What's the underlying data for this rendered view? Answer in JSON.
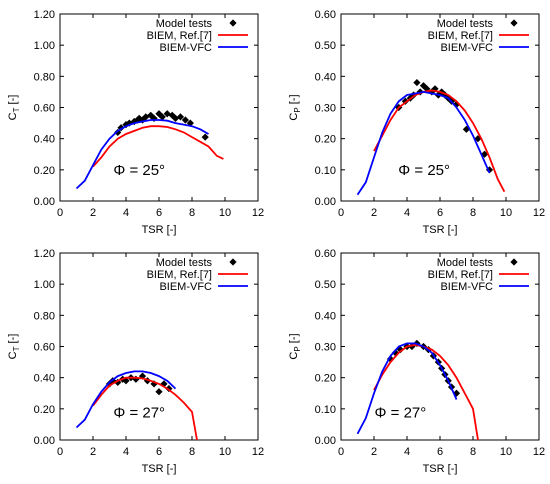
{
  "chart_data": [
    {
      "type": "scatter+line",
      "xlabel": "TSR [-]",
      "ylabel_main": "C",
      "ylabel_sub": "T",
      "ylabel_tail": " [-]",
      "xlim": [
        0,
        12
      ],
      "ylim": [
        0,
        1.2
      ],
      "xticks": [
        "0",
        "2",
        "4",
        "6",
        "8",
        "10",
        "12"
      ],
      "yticks": [
        "0.00",
        "0.20",
        "0.40",
        "0.60",
        "0.80",
        "1.00",
        "1.20"
      ],
      "annotation": "Φ = 25°",
      "legend_position": "top-right",
      "series": [
        {
          "name": "Model tests",
          "kind": "markers",
          "color": "#000000",
          "x": [
            3.5,
            3.7,
            4.0,
            4.2,
            4.5,
            4.7,
            4.8,
            5.0,
            5.2,
            5.5,
            5.7,
            6.0,
            6.2,
            6.5,
            6.8,
            7.0,
            7.3,
            7.6,
            7.9,
            8.8
          ],
          "y": [
            0.44,
            0.47,
            0.49,
            0.5,
            0.51,
            0.52,
            0.53,
            0.52,
            0.54,
            0.55,
            0.53,
            0.56,
            0.54,
            0.56,
            0.55,
            0.53,
            0.54,
            0.52,
            0.5,
            0.41
          ]
        },
        {
          "name": "BIEM, Ref.[7]",
          "kind": "line",
          "color": "#ff0000",
          "x": [
            2.0,
            2.5,
            3.0,
            3.5,
            4.0,
            4.5,
            5.0,
            5.5,
            6.0,
            6.5,
            7.0,
            7.5,
            8.0,
            8.5,
            9.0,
            9.5,
            9.9
          ],
          "y": [
            0.22,
            0.28,
            0.35,
            0.4,
            0.43,
            0.45,
            0.47,
            0.48,
            0.48,
            0.475,
            0.46,
            0.44,
            0.41,
            0.38,
            0.35,
            0.29,
            0.27
          ]
        },
        {
          "name": "BIEM-VFC",
          "kind": "line",
          "color": "#0000ff",
          "x": [
            1.0,
            1.5,
            2.0,
            2.5,
            3.0,
            3.5,
            4.0,
            4.5,
            5.0,
            5.5,
            6.0,
            6.5,
            7.0,
            7.5,
            8.0,
            8.5,
            9.0
          ],
          "y": [
            0.08,
            0.13,
            0.23,
            0.33,
            0.4,
            0.45,
            0.48,
            0.5,
            0.51,
            0.52,
            0.52,
            0.515,
            0.5,
            0.49,
            0.48,
            0.46,
            0.43
          ]
        }
      ]
    },
    {
      "type": "scatter+line",
      "xlabel": "TSR [-]",
      "ylabel_main": "C",
      "ylabel_sub": "P",
      "ylabel_tail": " [-]",
      "xlim": [
        0,
        12
      ],
      "ylim": [
        0,
        0.6
      ],
      "xticks": [
        "0",
        "2",
        "4",
        "6",
        "8",
        "10",
        "12"
      ],
      "yticks": [
        "0.00",
        "0.10",
        "0.20",
        "0.30",
        "0.40",
        "0.50",
        "0.60"
      ],
      "annotation": "Φ = 25°",
      "legend_position": "top-right",
      "series": [
        {
          "name": "Model tests",
          "kind": "markers",
          "color": "#000000",
          "x": [
            3.5,
            3.9,
            4.2,
            4.4,
            4.6,
            4.8,
            5.0,
            5.2,
            5.5,
            5.7,
            5.9,
            6.1,
            6.3,
            6.5,
            6.7,
            7.0,
            7.6,
            8.3,
            8.7,
            9.0
          ],
          "y": [
            0.3,
            0.32,
            0.33,
            0.34,
            0.38,
            0.35,
            0.37,
            0.36,
            0.35,
            0.36,
            0.34,
            0.35,
            0.34,
            0.33,
            0.32,
            0.31,
            0.23,
            0.2,
            0.15,
            0.1
          ]
        },
        {
          "name": "BIEM, Ref.[7]",
          "kind": "line",
          "color": "#ff0000",
          "x": [
            2.0,
            2.5,
            3.0,
            3.5,
            4.0,
            4.5,
            5.0,
            5.5,
            6.0,
            6.5,
            7.0,
            7.5,
            8.0,
            8.5,
            9.0,
            9.5,
            9.9
          ],
          "y": [
            0.16,
            0.21,
            0.26,
            0.3,
            0.32,
            0.34,
            0.35,
            0.355,
            0.35,
            0.34,
            0.32,
            0.29,
            0.25,
            0.2,
            0.14,
            0.07,
            0.03
          ]
        },
        {
          "name": "BIEM-VFC",
          "kind": "line",
          "color": "#0000ff",
          "x": [
            1.0,
            1.5,
            2.0,
            2.5,
            3.0,
            3.5,
            4.0,
            4.5,
            5.0,
            5.5,
            6.0,
            6.5,
            7.0,
            7.5,
            8.0,
            8.5,
            9.0
          ],
          "y": [
            0.02,
            0.06,
            0.14,
            0.22,
            0.28,
            0.32,
            0.34,
            0.345,
            0.35,
            0.345,
            0.34,
            0.33,
            0.3,
            0.26,
            0.21,
            0.15,
            0.09
          ]
        }
      ]
    },
    {
      "type": "scatter+line",
      "xlabel": "TSR [-]",
      "ylabel_main": "C",
      "ylabel_sub": "T",
      "ylabel_tail": " [-]",
      "xlim": [
        0,
        12
      ],
      "ylim": [
        0,
        1.2
      ],
      "xticks": [
        "0",
        "2",
        "4",
        "6",
        "8",
        "10",
        "12"
      ],
      "yticks": [
        "0.00",
        "0.20",
        "0.40",
        "0.60",
        "0.80",
        "1.00",
        "1.20"
      ],
      "annotation": "Φ = 27°",
      "legend_position": "top-right",
      "series": [
        {
          "name": "Model tests",
          "kind": "markers",
          "color": "#000000",
          "x": [
            3.0,
            3.2,
            3.5,
            3.8,
            4.0,
            4.3,
            4.6,
            5.0,
            5.3,
            5.7,
            6.0,
            6.3,
            6.6
          ],
          "y": [
            0.36,
            0.38,
            0.37,
            0.39,
            0.38,
            0.4,
            0.39,
            0.41,
            0.38,
            0.36,
            0.31,
            0.36,
            0.33
          ]
        },
        {
          "name": "BIEM, Ref.[7]",
          "kind": "line",
          "color": "#ff0000",
          "x": [
            2.0,
            2.5,
            3.0,
            3.5,
            4.0,
            4.5,
            5.0,
            5.5,
            6.0,
            6.5,
            7.0,
            7.5,
            8.0,
            8.3
          ],
          "y": [
            0.22,
            0.29,
            0.35,
            0.38,
            0.4,
            0.4,
            0.395,
            0.38,
            0.36,
            0.33,
            0.29,
            0.24,
            0.18,
            0.0
          ]
        },
        {
          "name": "BIEM-VFC",
          "kind": "line",
          "color": "#0000ff",
          "x": [
            1.0,
            1.5,
            2.0,
            2.5,
            3.0,
            3.5,
            4.0,
            4.5,
            5.0,
            5.5,
            6.0,
            6.5,
            7.0
          ],
          "y": [
            0.08,
            0.13,
            0.23,
            0.31,
            0.37,
            0.41,
            0.43,
            0.44,
            0.44,
            0.43,
            0.41,
            0.38,
            0.33
          ]
        }
      ]
    },
    {
      "type": "scatter+line",
      "xlabel": "TSR [-]",
      "ylabel_main": "C",
      "ylabel_sub": "P",
      "ylabel_tail": " [-]",
      "xlim": [
        0,
        12
      ],
      "ylim": [
        0,
        0.6
      ],
      "xticks": [
        "0",
        "2",
        "4",
        "6",
        "8",
        "10",
        "12"
      ],
      "yticks": [
        "0.00",
        "0.10",
        "0.20",
        "0.30",
        "0.40",
        "0.50",
        "0.60"
      ],
      "annotation": "Φ = 27°",
      "legend_position": "top-right",
      "series": [
        {
          "name": "Model tests",
          "kind": "markers",
          "color": "#000000",
          "x": [
            3.0,
            3.3,
            3.6,
            4.0,
            4.3,
            4.6,
            5.0,
            5.3,
            5.6,
            5.9,
            6.1,
            6.3,
            6.5,
            6.7,
            7.0
          ],
          "y": [
            0.26,
            0.28,
            0.29,
            0.3,
            0.3,
            0.31,
            0.3,
            0.29,
            0.27,
            0.25,
            0.23,
            0.21,
            0.19,
            0.17,
            0.15
          ]
        },
        {
          "name": "BIEM, Ref.[7]",
          "kind": "line",
          "color": "#ff0000",
          "x": [
            2.0,
            2.5,
            3.0,
            3.5,
            4.0,
            4.5,
            5.0,
            5.5,
            6.0,
            6.5,
            7.0,
            7.5,
            8.0,
            8.3
          ],
          "y": [
            0.16,
            0.21,
            0.25,
            0.28,
            0.3,
            0.305,
            0.3,
            0.29,
            0.27,
            0.24,
            0.2,
            0.15,
            0.1,
            0.0
          ]
        },
        {
          "name": "BIEM-VFC",
          "kind": "line",
          "color": "#0000ff",
          "x": [
            1.0,
            1.5,
            2.0,
            2.5,
            3.0,
            3.5,
            4.0,
            4.5,
            5.0,
            5.5,
            6.0,
            6.5,
            7.0
          ],
          "y": [
            0.02,
            0.07,
            0.15,
            0.22,
            0.27,
            0.3,
            0.31,
            0.31,
            0.3,
            0.28,
            0.24,
            0.19,
            0.13
          ]
        }
      ]
    }
  ]
}
